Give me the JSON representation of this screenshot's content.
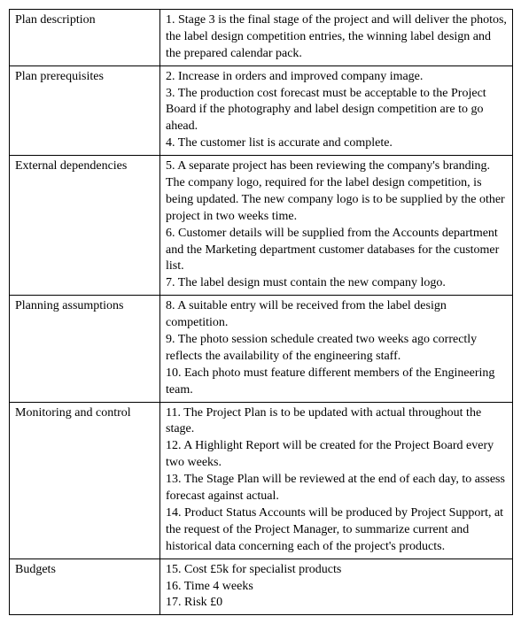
{
  "rows": [
    {
      "label": "Plan description",
      "items": [
        "1. Stage 3 is the final stage of the project and will deliver the photos, the label design competition entries, the winning label design and the prepared calendar pack."
      ]
    },
    {
      "label": "Plan prerequisites",
      "items": [
        "2. Increase in orders and improved company image.",
        "3. The production cost forecast must be acceptable to the Project Board if the photography and label design competition are to go ahead.",
        "4. The customer list is accurate and complete."
      ]
    },
    {
      "label": "External dependencies",
      "items": [
        "5. A separate project has been reviewing the company's branding. The company logo, required for the label design competition, is being updated. The new company logo is to be supplied by the other project in two weeks time.",
        "6. Customer details will be supplied from the Accounts department and the Marketing department customer databases for the customer list.",
        "7. The label design must contain the new company logo."
      ]
    },
    {
      "label": "Planning assumptions",
      "items": [
        "8. A suitable entry will be received from the label design competition.",
        "9. The photo session schedule created two weeks ago correctly reflects the availability of the engineering staff.",
        "10. Each photo must feature different members of the Engineering team."
      ]
    },
    {
      "label": "Monitoring and control",
      "items": [
        "11. The Project Plan is to be updated with actual throughout the stage.",
        "12. A Highlight Report will be created for the Project Board every two weeks.",
        "13. The Stage Plan will be reviewed at the end of each day, to assess forecast against actual.",
        "14. Product Status Accounts will be produced by Project Support, at the request of the Project Manager, to summarize current and historical data concerning each of the project's products."
      ]
    },
    {
      "label": "Budgets",
      "items": [
        "15. Cost £5k for specialist products",
        "16. Time 4 weeks",
        "17. Risk £0"
      ]
    }
  ]
}
